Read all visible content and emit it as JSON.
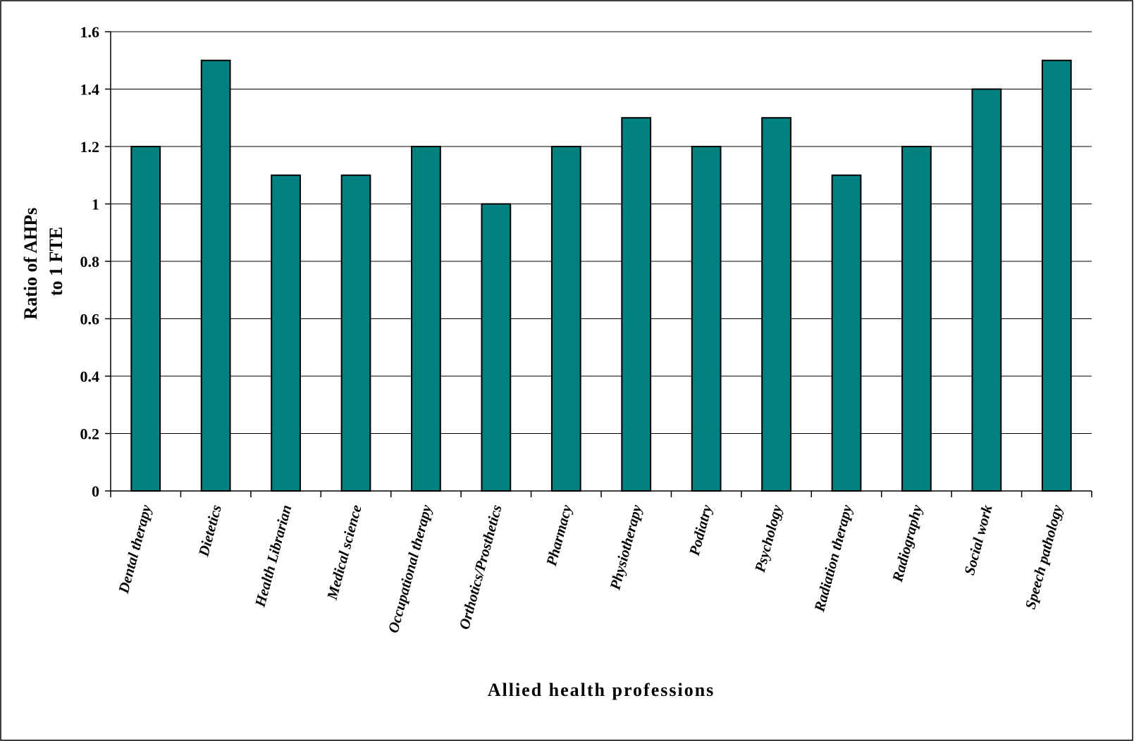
{
  "chart_data": {
    "type": "bar",
    "title": "",
    "xlabel": "Allied health professions",
    "ylabel_lines": [
      "Ratio of AHPs",
      "to 1 FTE"
    ],
    "ylim": [
      0,
      1.6
    ],
    "yticks": [
      0,
      0.2,
      0.4,
      0.6,
      0.8,
      1,
      1.2,
      1.4,
      1.6
    ],
    "ytick_labels": [
      "0",
      "0.2",
      "0.4",
      "0.6",
      "0.8",
      "1",
      "1.2",
      "1.4",
      "1.6"
    ],
    "grid": true,
    "legend": "none",
    "categories": [
      "Dental therapy",
      "Dietetics",
      "Health Librarian",
      "Medical science",
      "Occupational therapy",
      "Orthotics/Prosthetics",
      "Pharmacy",
      "Physiotherapy",
      "Podiatry",
      "Psychology",
      "Radiation therapy",
      "Radiography",
      "Social work",
      "Speech pathology"
    ],
    "values": [
      1.2,
      1.5,
      1.1,
      1.1,
      1.2,
      1.0,
      1.2,
      1.3,
      1.2,
      1.3,
      1.1,
      1.2,
      1.4,
      1.5
    ],
    "bar_color": "#008080"
  }
}
